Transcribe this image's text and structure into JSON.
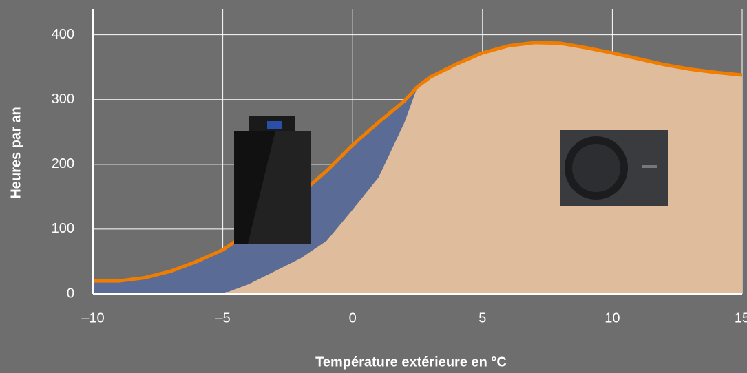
{
  "chart_data": {
    "type": "area",
    "x_label": "Température extérieure en °C",
    "y_label": "Heures par an",
    "x": [
      -10,
      -9,
      -8,
      -7,
      -6,
      -5,
      -4,
      -3,
      -2,
      -1,
      0,
      1,
      2,
      2.5,
      3,
      4,
      5,
      6,
      7,
      8,
      9,
      10,
      11,
      12,
      13,
      14,
      15
    ],
    "series": [
      {
        "type": "line",
        "color": "#f07d00",
        "under_color": "#5a6b96",
        "values": [
          20,
          20,
          25,
          35,
          50,
          68,
          95,
          125,
          155,
          190,
          230,
          265,
          298,
          320,
          335,
          355,
          372,
          383,
          388,
          387,
          380,
          372,
          363,
          354,
          347,
          342,
          338
        ]
      },
      {
        "type": "area",
        "color": "#dfbd9c",
        "values": [
          0,
          0,
          0,
          0,
          0,
          0,
          15,
          35,
          55,
          82,
          130,
          180,
          265,
          320,
          335,
          355,
          372,
          383,
          388,
          387,
          380,
          372,
          363,
          354,
          347,
          342,
          338
        ]
      }
    ],
    "xlim": [
      -10,
      15
    ],
    "xticks": [
      {
        "value": -10,
        "label": "–10"
      },
      {
        "value": -5,
        "label": "–5"
      },
      0,
      5,
      10,
      15
    ],
    "ylim": [
      0,
      440
    ],
    "yticks": [
      0,
      100,
      200,
      300,
      400
    ],
    "grid": true
  }
}
